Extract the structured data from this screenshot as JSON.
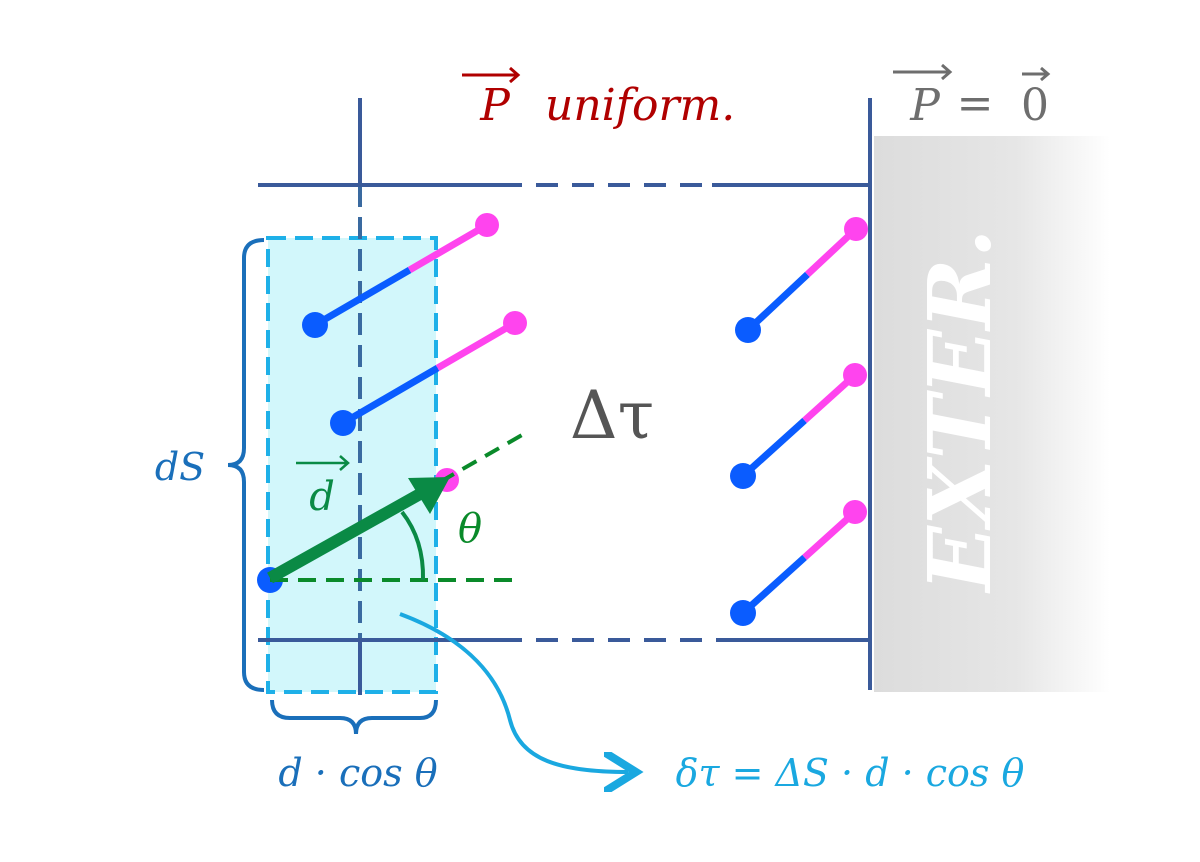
{
  "labels": {
    "p_vector": "P",
    "uniform": "uniform.",
    "p_zero_lhs": "P",
    "p_zero_eq": "=",
    "p_zero_rhs": "0",
    "exterior": "EXTER.",
    "delta_tau": "Δτ",
    "dS": "dS",
    "d_vector": "d",
    "theta": "θ",
    "projection": "d · cos θ",
    "formula": "δτ = ΔS · d · cos θ"
  },
  "colors": {
    "frame": "#3a5a9a",
    "uniform_text": "#b00000",
    "zero_text": "#6e6e6e",
    "dipole_negative": "#0a5cff",
    "dipole_positive": "#ff44ee",
    "d_vector": "#0a8a45",
    "slab_fill": "#d2f7fb",
    "slab_border": "#1eb0e8",
    "brace": "#1a6fba",
    "formula": "#1aa8e0",
    "delta_tau": "#555555"
  }
}
